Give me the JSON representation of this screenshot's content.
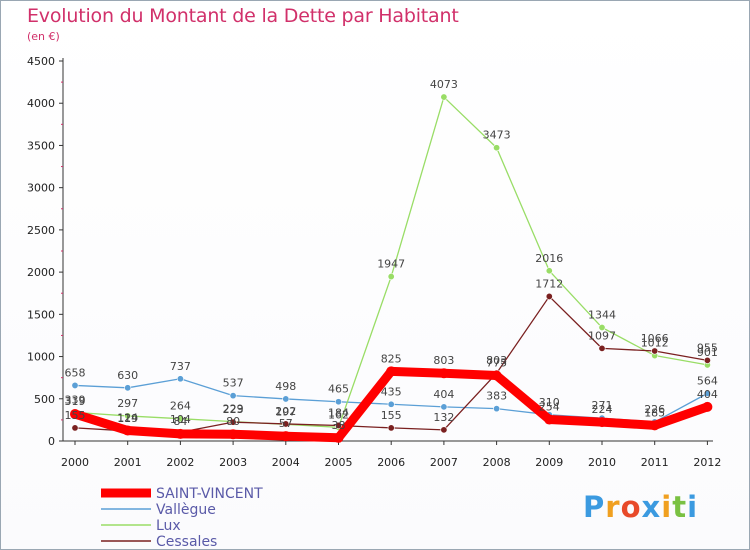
{
  "chart_data": {
    "type": "line",
    "title": "Evolution du Montant de la Dette par Habitant",
    "subtitle": "(en €)",
    "categories": [
      "2000",
      "2001",
      "2002",
      "2003",
      "2004",
      "2005",
      "2006",
      "2007",
      "2008",
      "2009",
      "2010",
      "2011",
      "2012"
    ],
    "ylim": [
      0,
      4500
    ],
    "yticks": [
      0,
      500,
      1000,
      1500,
      2000,
      2500,
      3000,
      3500,
      4000,
      4500
    ],
    "grid": false,
    "legend_position": "bottom-left",
    "series": [
      {
        "name": "SAINT-VINCENT",
        "color": "#ff0000",
        "values": [
          319,
          124,
          84,
          80,
          57,
          38,
          825,
          803,
          775,
          254,
          224,
          185,
          404
        ]
      },
      {
        "name": "Vallègue",
        "color": "#5b9fd6",
        "values": [
          658,
          630,
          737,
          537,
          498,
          465,
          435,
          404,
          383,
          310,
          271,
          226,
          564
        ]
      },
      {
        "name": "Lux",
        "color": "#99dd66",
        "values": [
          339,
          297,
          264,
          229,
          197,
          162,
          1947,
          4073,
          3473,
          2016,
          1344,
          1012,
          901
        ]
      },
      {
        "name": "Cessales",
        "color": "#7a2020",
        "values": [
          155,
          119,
          104,
          223,
          202,
          184,
          155,
          132,
          803,
          1712,
          1097,
          1066,
          955
        ]
      }
    ]
  },
  "logo": {
    "text": "Proxiti",
    "letters": [
      "P",
      "r",
      "o",
      "x",
      "i",
      "t",
      "i"
    ],
    "colors": [
      "#3b9ae0",
      "#f0a020",
      "#e84a2a",
      "#3b9ae0",
      "#f0a020",
      "#7ac142",
      "#3b9ae0"
    ]
  }
}
